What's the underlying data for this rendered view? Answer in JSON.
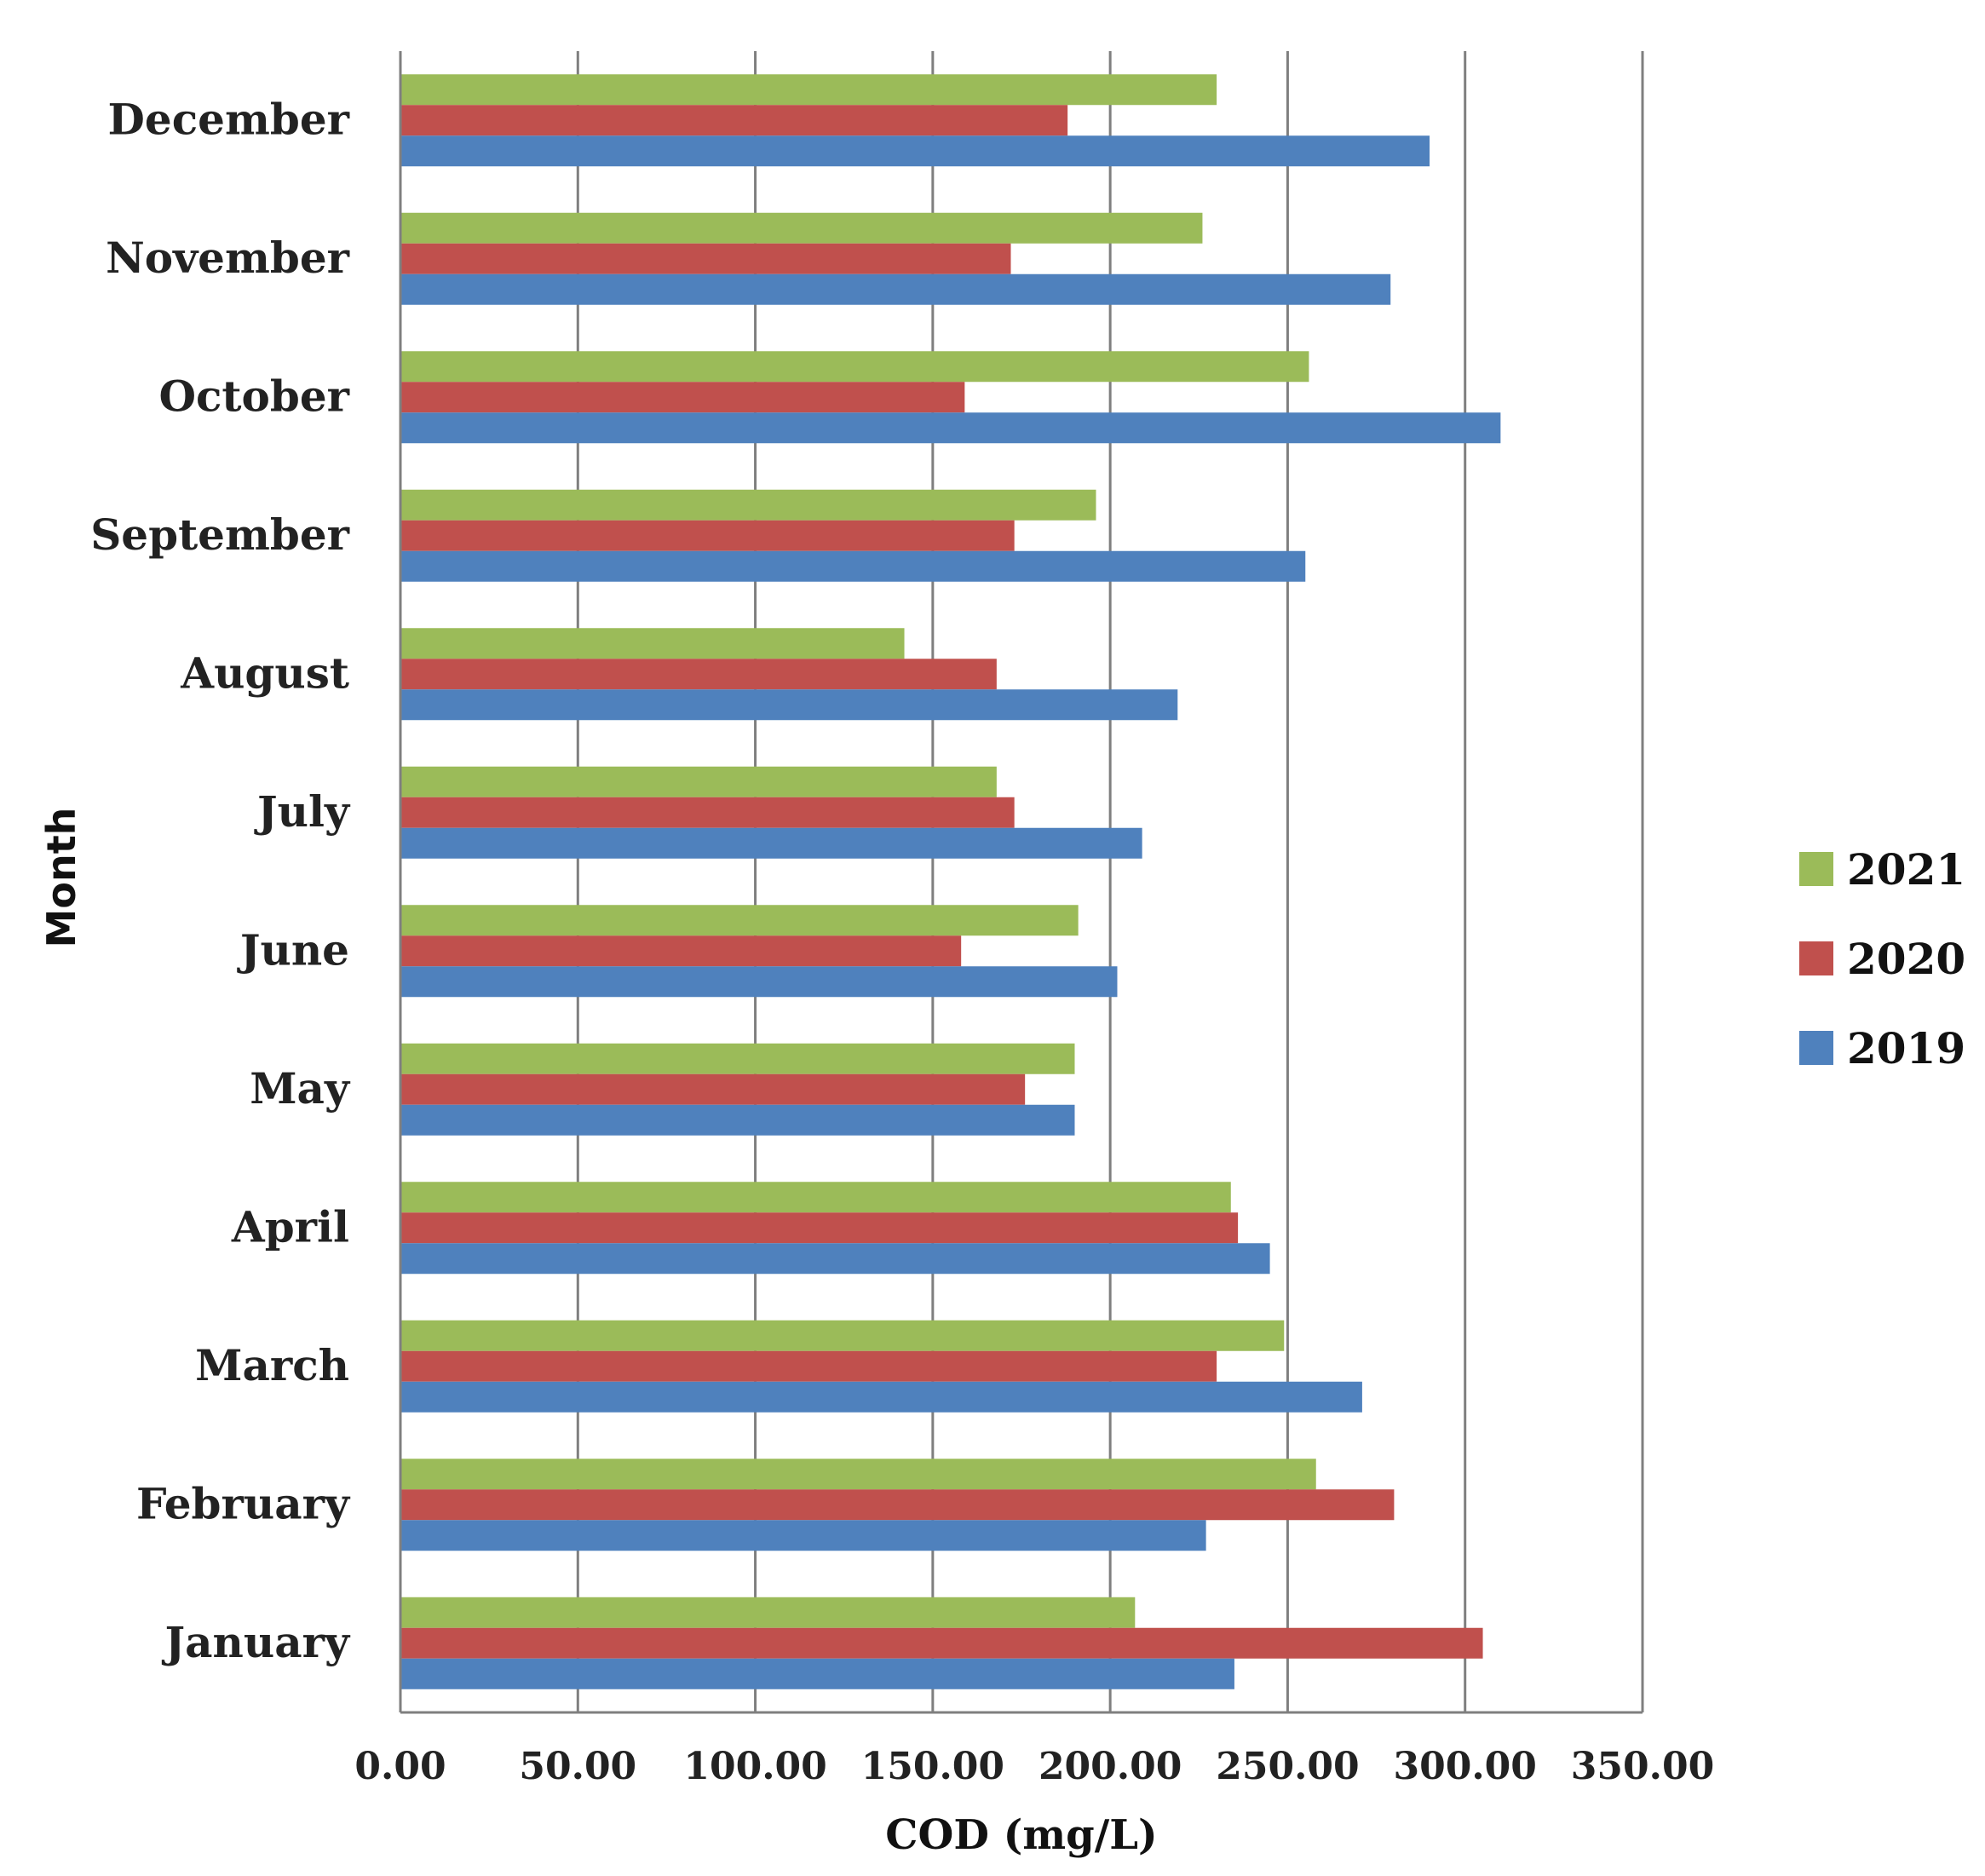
{
  "chart_data": {
    "type": "bar",
    "orientation": "horizontal",
    "title": "",
    "xlabel": "COD (mg/L)",
    "ylabel": "Month",
    "xlim": [
      0,
      350
    ],
    "x_ticks": [
      "0.00",
      "50.00",
      "100.00",
      "150.00",
      "200.00",
      "250.00",
      "300.00",
      "350.00"
    ],
    "grid": true,
    "legend_position": "right",
    "categories": [
      "January",
      "February",
      "March",
      "April",
      "May",
      "June",
      "July",
      "August",
      "September",
      "October",
      "November",
      "December"
    ],
    "series": [
      {
        "name": "2019",
        "color": "#4f81bd",
        "values": [
          235,
          227,
          271,
          245,
          190,
          202,
          209,
          219,
          255,
          310,
          279,
          290
        ]
      },
      {
        "name": "2020",
        "color": "#c0504d",
        "values": [
          305,
          280,
          230,
          236,
          176,
          158,
          173,
          168,
          173,
          159,
          172,
          188
        ]
      },
      {
        "name": "2021",
        "color": "#9bbb59",
        "values": [
          207,
          258,
          249,
          234,
          190,
          191,
          168,
          142,
          196,
          256,
          226,
          230
        ]
      }
    ]
  }
}
